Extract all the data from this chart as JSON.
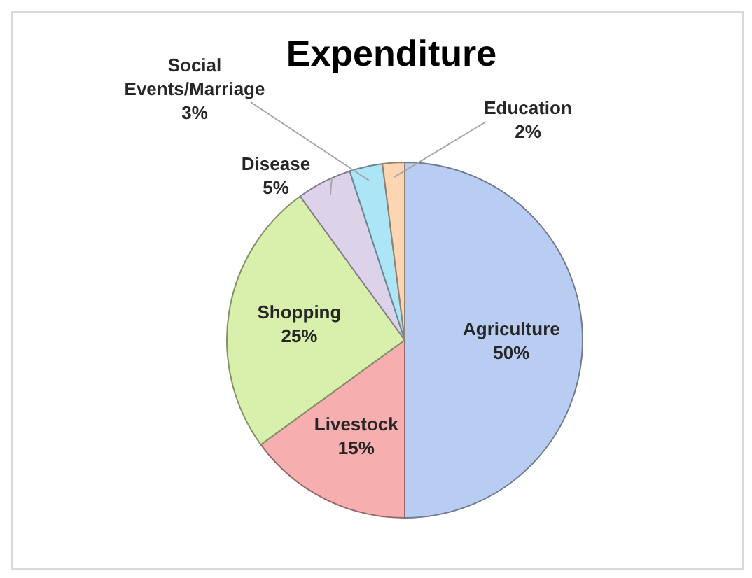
{
  "chart_data": {
    "type": "pie",
    "title": "Expenditure",
    "categories": [
      "Agriculture",
      "Livestock",
      "Shopping",
      "Disease",
      "Social Events/Marriage",
      "Education"
    ],
    "values": [
      50,
      15,
      25,
      5,
      3,
      2
    ],
    "value_labels": [
      "50%",
      "15%",
      "25%",
      "5%",
      "3%",
      "2%"
    ],
    "colors": [
      "#b9cdf2",
      "#f7aeae",
      "#d8f0ab",
      "#dcd2ea",
      "#ace5f5",
      "#fcd6b2"
    ],
    "legend": false
  }
}
